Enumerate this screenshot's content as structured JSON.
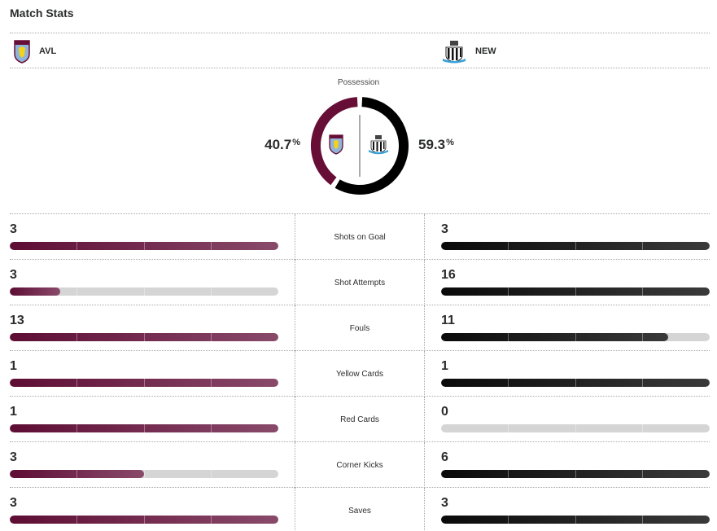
{
  "header": {
    "title": "Match Stats"
  },
  "teams": {
    "home": {
      "abbr": "AVL",
      "crest": "aston-villa-crest",
      "color": "#670e36"
    },
    "away": {
      "abbr": "NEW",
      "crest": "newcastle-crest",
      "color": "#000000"
    }
  },
  "possession": {
    "label": "Possession",
    "home_pct": "40.7",
    "away_pct": "59.3",
    "unit": "%",
    "home_value": 40.7,
    "away_value": 59.3
  },
  "stats": [
    {
      "label": "Shots on Goal",
      "home": "3",
      "away": "3",
      "home_fill": 1.0,
      "away_fill": 1.0
    },
    {
      "label": "Shot Attempts",
      "home": "3",
      "away": "16",
      "home_fill": 0.1875,
      "away_fill": 1.0
    },
    {
      "label": "Fouls",
      "home": "13",
      "away": "11",
      "home_fill": 1.0,
      "away_fill": 0.846
    },
    {
      "label": "Yellow Cards",
      "home": "1",
      "away": "1",
      "home_fill": 1.0,
      "away_fill": 1.0
    },
    {
      "label": "Red Cards",
      "home": "1",
      "away": "0",
      "home_fill": 1.0,
      "away_fill": 0.0
    },
    {
      "label": "Corner Kicks",
      "home": "3",
      "away": "6",
      "home_fill": 0.5,
      "away_fill": 1.0
    },
    {
      "label": "Saves",
      "home": "3",
      "away": "3",
      "home_fill": 1.0,
      "away_fill": 1.0
    }
  ]
}
